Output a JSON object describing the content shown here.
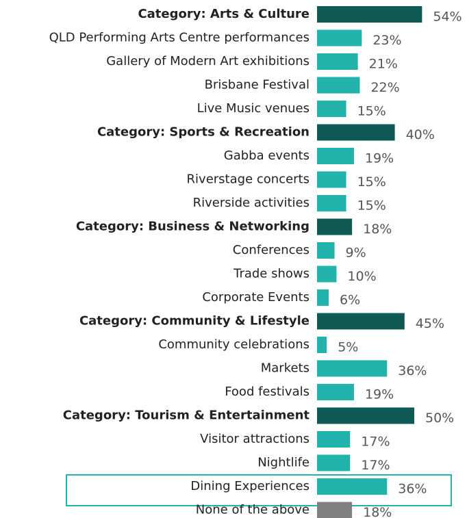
{
  "chart_data": {
    "type": "bar",
    "categories": [
      "Category: Arts & Culture",
      "QLD Performing Arts Centre performances",
      "Gallery of Modern Art exhibitions",
      "Brisbane Festival",
      "Live Music venues",
      "Category: Sports & Recreation",
      "Gabba events",
      "Riverstage concerts",
      "Riverside activities",
      "Category: Business & Networking",
      "Conferences",
      "Trade shows",
      "Corporate Events",
      "Category: Community & Lifestyle",
      "Community celebrations",
      "Markets",
      "Food festivals",
      "Category: Tourism & Entertainment",
      "Visitor attractions",
      "Nightlife",
      "Dining Experiences",
      "None of the above"
    ],
    "values": [
      54,
      23,
      21,
      22,
      15,
      40,
      19,
      15,
      15,
      18,
      9,
      10,
      6,
      45,
      5,
      36,
      19,
      50,
      17,
      17,
      36,
      18
    ],
    "value_labels": [
      "54%",
      "23%",
      "21%",
      "22%",
      "15%",
      "40%",
      "19%",
      "15%",
      "15%",
      "18%",
      "9%",
      "10%",
      "6%",
      "45%",
      "5%",
      "36%",
      "19%",
      "50%",
      "17%",
      "17%",
      "36%",
      "18%"
    ],
    "colors": [
      "#0f5a55",
      "#22b3ad",
      "#22b3ad",
      "#22b3ad",
      "#22b3ad",
      "#0f5a55",
      "#22b3ad",
      "#22b3ad",
      "#22b3ad",
      "#0f5a55",
      "#22b3ad",
      "#22b3ad",
      "#22b3ad",
      "#0f5a55",
      "#22b3ad",
      "#22b3ad",
      "#22b3ad",
      "#0f5a55",
      "#22b3ad",
      "#22b3ad",
      "#22b3ad",
      "#808080"
    ],
    "bold": [
      true,
      false,
      false,
      false,
      false,
      true,
      false,
      false,
      false,
      true,
      false,
      false,
      false,
      true,
      false,
      false,
      false,
      true,
      false,
      false,
      false,
      false
    ]
  }
}
